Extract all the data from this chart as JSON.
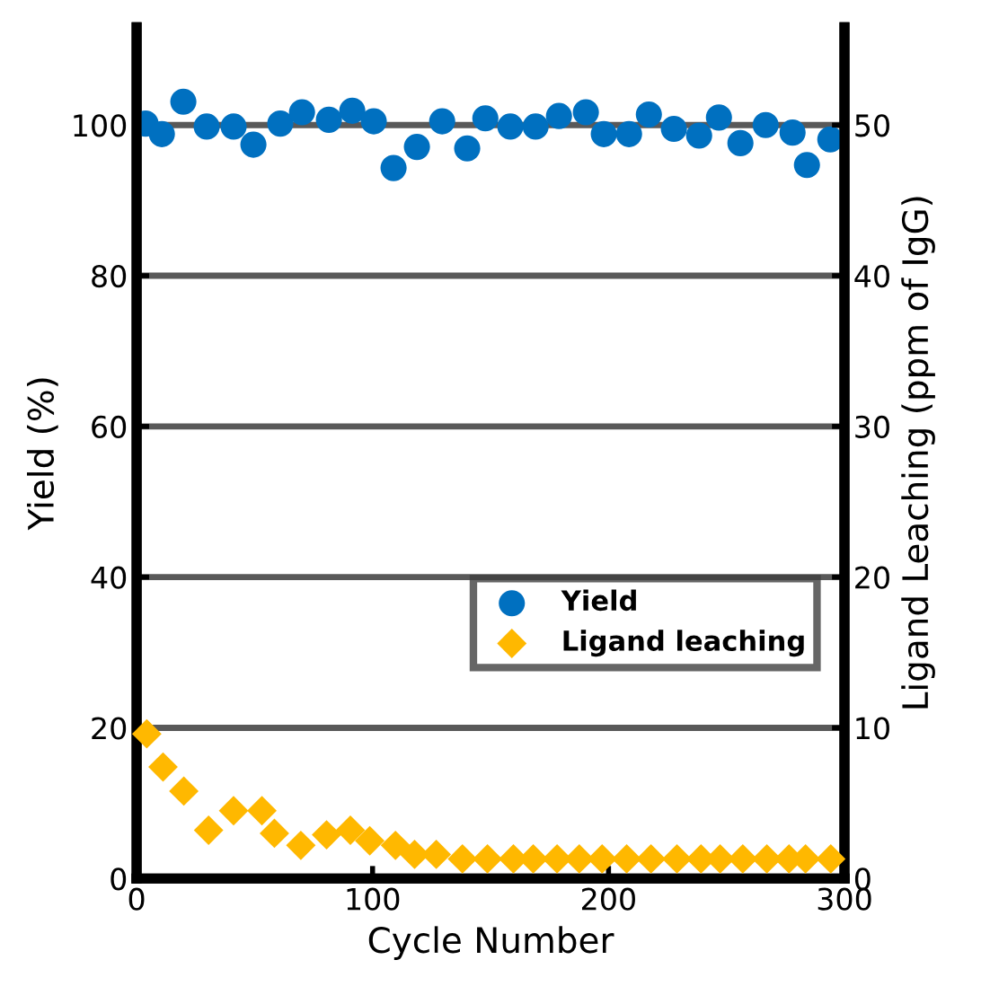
{
  "chart_data": {
    "type": "scatter",
    "xlabel": "Cycle Number",
    "ylabel": "Yield (%)",
    "y2label": "Ligand Leaching (ppm of IgG)",
    "xlim": [
      0,
      300
    ],
    "xticks": [
      0,
      100,
      200,
      300
    ],
    "ylim": [
      0,
      113
    ],
    "yticks": [
      0,
      20,
      40,
      60,
      80,
      100
    ],
    "y2lim": [
      0,
      56.5
    ],
    "y2ticks": [
      0,
      10,
      20,
      30,
      40,
      50
    ],
    "grid": "y",
    "legend": "right",
    "series": [
      {
        "name": "Yield",
        "color": "#0070c0",
        "marker": "circle",
        "x": [
          3.8,
          10.7,
          19.8,
          29.7,
          41.1,
          49.5,
          60.9,
          70.1,
          81.5,
          91.4,
          100.5,
          108.9,
          118.8,
          129.5,
          140.1,
          147.8,
          158.4,
          169.1,
          179.0,
          190.4,
          198.0,
          208.7,
          217.1,
          227.7,
          238.4,
          246.8,
          255.9,
          266.6,
          278.0,
          284.1,
          294.0
        ],
        "values": [
          100.2,
          98.8,
          103.1,
          99.8,
          99.8,
          97.4,
          100.2,
          101.7,
          100.7,
          101.9,
          100.5,
          94.3,
          97.1,
          100.5,
          96.9,
          100.9,
          99.8,
          99.8,
          101.2,
          101.7,
          98.8,
          98.8,
          101.4,
          99.5,
          98.6,
          101.0,
          97.6,
          100.0,
          99.0,
          94.7,
          98.1
        ]
      },
      {
        "name": "Ligand leaching",
        "color": "#ffb800",
        "marker": "diamond",
        "axis": "y2",
        "x": [
          4.3,
          11.2,
          20.0,
          30.5,
          41.1,
          53.1,
          58.4,
          69.6,
          80.5,
          90.6,
          98.8,
          109.7,
          117.8,
          127.0,
          138.1,
          148.7,
          159.7,
          168.1,
          178.2,
          187.6,
          197.3,
          207.7,
          218.0,
          229.0,
          239.2,
          247.3,
          256.9,
          267.1,
          276.5,
          283.5,
          294.2
        ],
        "values": [
          9.6,
          7.4,
          5.8,
          3.2,
          4.5,
          4.5,
          3.0,
          2.2,
          2.9,
          3.2,
          2.5,
          2.2,
          1.6,
          1.6,
          1.3,
          1.3,
          1.3,
          1.3,
          1.3,
          1.3,
          1.3,
          1.3,
          1.3,
          1.3,
          1.3,
          1.3,
          1.3,
          1.3,
          1.3,
          1.3,
          1.3
        ]
      }
    ]
  }
}
